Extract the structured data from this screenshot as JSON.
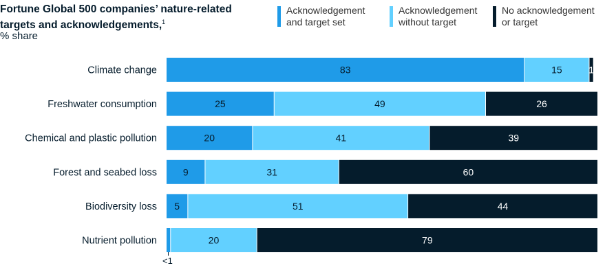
{
  "title": "Fortune Global 500 companies’ nature-related targets and acknowledgements,",
  "title_sup": "1",
  "subtitle": "% share",
  "legend": [
    {
      "label": "Acknowledgement\nand target set",
      "color": "#1f9be8"
    },
    {
      "label": "Acknowledgement\nwithout target",
      "color": "#62d0ff"
    },
    {
      "label": "No acknowledgement\nor target",
      "color": "#051c2c"
    }
  ],
  "chart_data": {
    "type": "bar",
    "orientation": "horizontal",
    "stacked": true,
    "categories": [
      "Climate change",
      "Freshwater consumption",
      "Chemical and plastic pollution",
      "Forest and seabed loss",
      "Biodiversity loss",
      "Nutrient pollution"
    ],
    "series": [
      {
        "name": "Acknowledgement and target set",
        "color": "#1f9be8",
        "values": [
          83,
          25,
          20,
          9,
          5,
          1
        ],
        "labels": [
          "83",
          "25",
          "20",
          "9",
          "5",
          "<1"
        ]
      },
      {
        "name": "Acknowledgement without target",
        "color": "#62d0ff",
        "values": [
          15,
          49,
          41,
          31,
          51,
          20
        ],
        "labels": [
          "15",
          "49",
          "41",
          "31",
          "51",
          "20"
        ]
      },
      {
        "name": "No acknowledgement or target",
        "color": "#051c2c",
        "values": [
          1,
          26,
          39,
          60,
          44,
          79
        ],
        "labels": [
          "1",
          "26",
          "39",
          "60",
          "44",
          "79"
        ]
      }
    ],
    "xlim": [
      0,
      100
    ],
    "grid": false,
    "legend_position": "top"
  }
}
